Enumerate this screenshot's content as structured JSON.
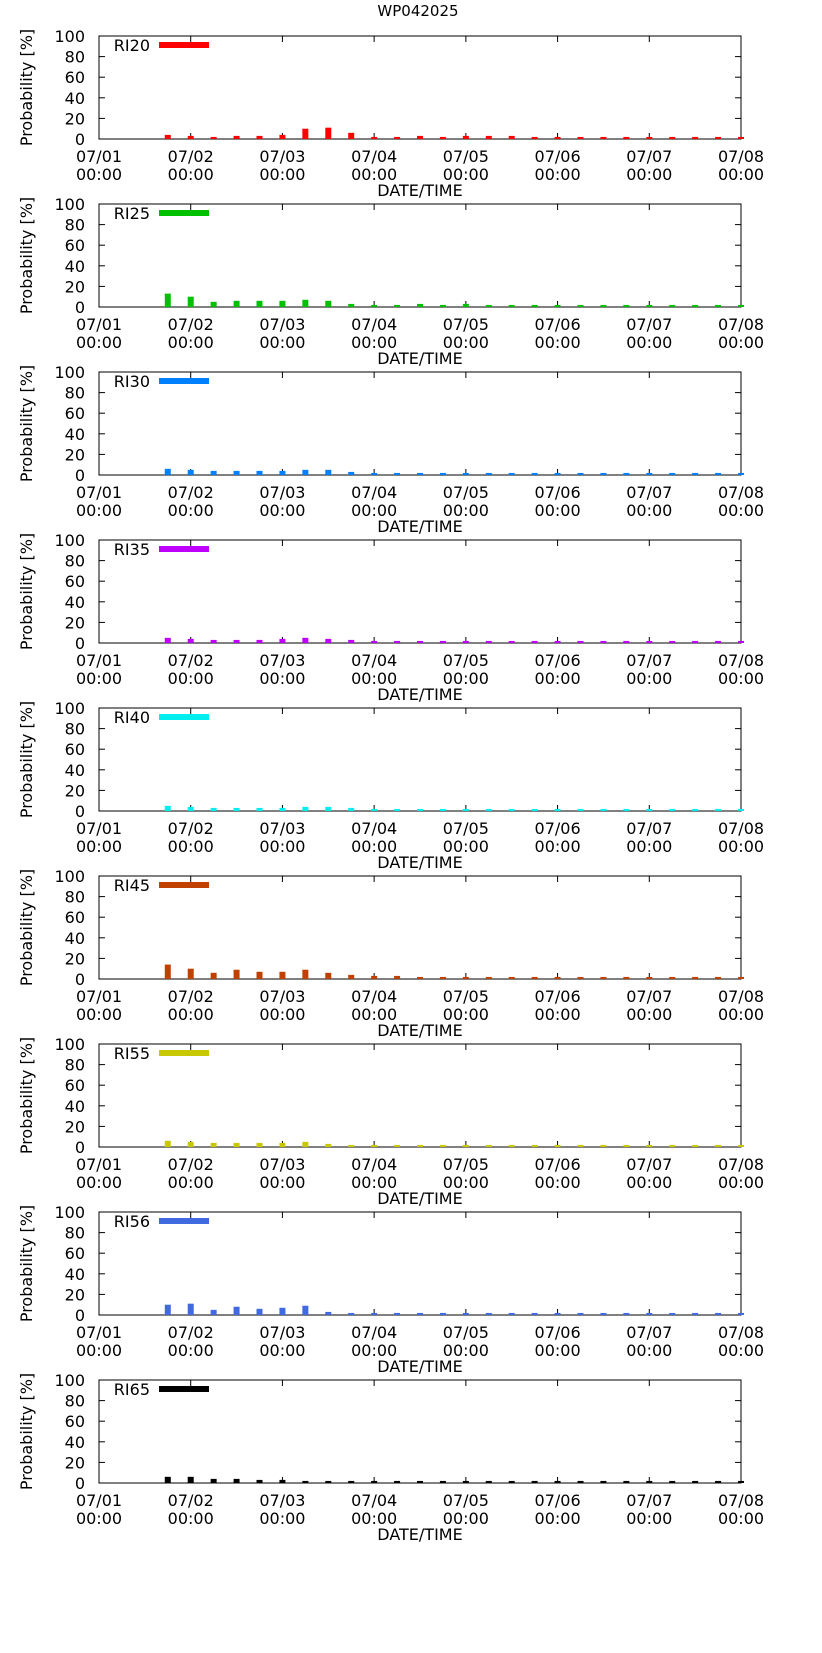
{
  "title": "WP042025",
  "chart_data": {
    "type": "bar",
    "ylabel": "Probability [%]",
    "xlabel": "DATE/TIME",
    "ylim": [
      0,
      100
    ],
    "yticks": [
      0,
      20,
      40,
      60,
      80,
      100
    ],
    "xlim_hours": [
      0,
      168
    ],
    "xticks": [
      {
        "hour": 0,
        "date": "07/01",
        "time": "00:00"
      },
      {
        "hour": 24,
        "date": "07/02",
        "time": "00:00"
      },
      {
        "hour": 48,
        "date": "07/03",
        "time": "00:00"
      },
      {
        "hour": 72,
        "date": "07/04",
        "time": "00:00"
      },
      {
        "hour": 96,
        "date": "07/05",
        "time": "00:00"
      },
      {
        "hour": 120,
        "date": "07/06",
        "time": "00:00"
      },
      {
        "hour": 144,
        "date": "07/07",
        "time": "00:00"
      },
      {
        "hour": 168,
        "date": "07/08",
        "time": "00:00"
      }
    ],
    "bar_hours": [
      18,
      24,
      30,
      36,
      42,
      48,
      54,
      60,
      66,
      72,
      78,
      84,
      90,
      96,
      102,
      108,
      114,
      120,
      126,
      132,
      138,
      144,
      150,
      156,
      162,
      168
    ],
    "series": [
      {
        "name": "RI20",
        "color": "#ff0000",
        "values": [
          4,
          3,
          2,
          3,
          3,
          4,
          10,
          11,
          6,
          2,
          2,
          3,
          2,
          3,
          3,
          3,
          2,
          2,
          2,
          2,
          2,
          2,
          2,
          2,
          2,
          2
        ]
      },
      {
        "name": "RI25",
        "color": "#00c000",
        "values": [
          13,
          10,
          5,
          6,
          6,
          6,
          7,
          6,
          3,
          2,
          2,
          3,
          2,
          3,
          2,
          2,
          2,
          2,
          2,
          2,
          2,
          2,
          2,
          2,
          2,
          2
        ]
      },
      {
        "name": "RI30",
        "color": "#0080ff",
        "values": [
          6,
          5,
          4,
          4,
          4,
          4,
          5,
          5,
          3,
          2,
          2,
          2,
          2,
          2,
          2,
          2,
          2,
          2,
          2,
          2,
          2,
          2,
          2,
          2,
          2,
          2
        ]
      },
      {
        "name": "RI35",
        "color": "#c000ff",
        "values": [
          5,
          4,
          3,
          3,
          3,
          4,
          5,
          4,
          3,
          2,
          2,
          2,
          2,
          2,
          2,
          2,
          2,
          2,
          2,
          2,
          2,
          2,
          2,
          2,
          2,
          2
        ]
      },
      {
        "name": "RI40",
        "color": "#00eeee",
        "values": [
          5,
          4,
          3,
          3,
          3,
          3,
          4,
          4,
          3,
          2,
          2,
          2,
          2,
          2,
          2,
          2,
          2,
          2,
          2,
          2,
          2,
          2,
          2,
          2,
          2,
          2
        ]
      },
      {
        "name": "RI45",
        "color": "#c04000",
        "values": [
          14,
          10,
          6,
          9,
          7,
          7,
          9,
          6,
          4,
          3,
          3,
          2,
          2,
          2,
          2,
          2,
          2,
          2,
          2,
          2,
          2,
          2,
          2,
          2,
          2,
          2
        ]
      },
      {
        "name": "RI55",
        "color": "#c8c800",
        "values": [
          6,
          5,
          4,
          4,
          4,
          4,
          5,
          3,
          2,
          2,
          2,
          2,
          2,
          2,
          2,
          2,
          2,
          2,
          2,
          2,
          2,
          2,
          2,
          2,
          2,
          2
        ]
      },
      {
        "name": "RI56",
        "color": "#4169e1",
        "values": [
          10,
          11,
          5,
          8,
          6,
          7,
          9,
          3,
          2,
          2,
          2,
          2,
          2,
          2,
          2,
          2,
          2,
          2,
          2,
          2,
          2,
          2,
          2,
          2,
          2,
          2
        ]
      },
      {
        "name": "RI65",
        "color": "#000000",
        "values": [
          6,
          6,
          4,
          4,
          3,
          3,
          2,
          2,
          2,
          2,
          2,
          2,
          2,
          2,
          2,
          2,
          2,
          2,
          2,
          2,
          2,
          2,
          2,
          2,
          2,
          2
        ]
      }
    ]
  }
}
